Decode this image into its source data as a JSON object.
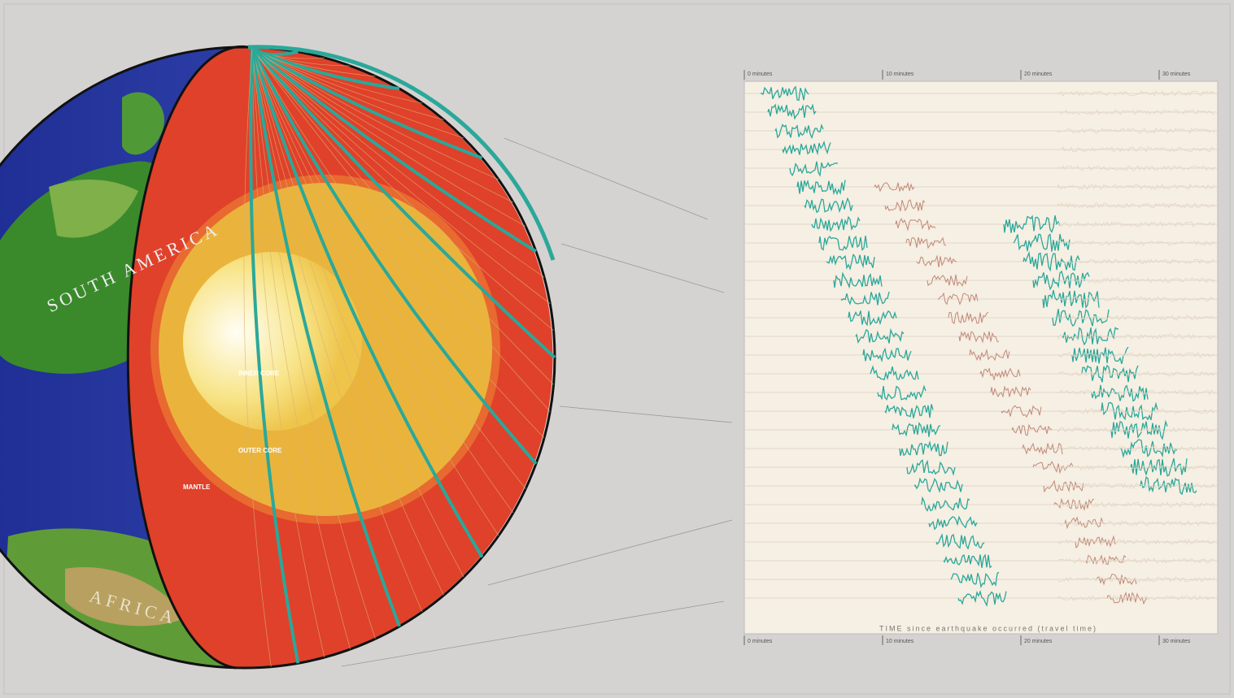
{
  "labels": {
    "continents": [
      "SOUTH AMERICA",
      "AFRICA"
    ],
    "layers": [
      "INNER CORE",
      "OUTER CORE",
      "MANTLE"
    ]
  },
  "seismogram": {
    "top_ticks": [
      "0 minutes",
      "10 minutes",
      "20 minutes",
      "30 minutes"
    ],
    "bottom_ticks": [
      "0 minutes",
      "10 minutes",
      "20 minutes",
      "30 minutes"
    ],
    "axis_label": "TIME since earthquake occurred (travel time)"
  }
}
